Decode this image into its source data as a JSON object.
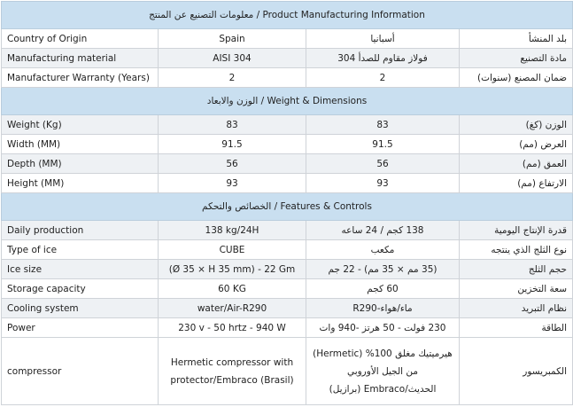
{
  "sections": [
    {
      "title": "معلومات التصنيع عن المنتج / Product Manufacturing Information",
      "rows": [
        {
          "en": "Country of Origin",
          "val_en": "Spain",
          "val_ar": "أسبانيا",
          "ar": "بلد المنشأ"
        },
        {
          "en": "Manufacturing material",
          "val_en": "AISI 304",
          "val_ar": "فولاز مقاوم للصدأ 304",
          "ar": "مادة التصنيع"
        },
        {
          "en": "Manufacturer Warranty (Years)",
          "val_en": "2",
          "val_ar": "2",
          "ar": "ضمان المصنع (سنوات)"
        }
      ]
    },
    {
      "title": "الوزن والابعاد / Weight & Dimensions",
      "rows": [
        {
          "en": "Weight (Kg)",
          "val_en": "83",
          "val_ar": "83",
          "ar": "الوزن (كغ)"
        },
        {
          "en": "Width (MM)",
          "val_en": "91.5",
          "val_ar": "91.5",
          "ar": "العرض (مم)"
        },
        {
          "en": "Depth (MM)",
          "val_en": "56",
          "val_ar": "56",
          "ar": "العمق (مم)"
        },
        {
          "en": "Height (MM)",
          "val_en": "93",
          "val_ar": "93",
          "ar": "الارتفاع (مم)"
        }
      ]
    },
    {
      "title": "الخصائص والتحكم / Features & Controls",
      "rows": [
        {
          "en": "Daily production",
          "val_en": "138 kg/24H",
          "val_ar": "138 كجم / 24 ساعه",
          "ar": "قدرة الإنتاج اليومية"
        },
        {
          "en": "Type of ice",
          "val_en": "CUBE",
          "val_ar": "مكعب",
          "ar": "نوع الثلج الذي ينتجه"
        },
        {
          "en": "Ice size",
          "val_en": "(Ø 35 × H 35 mm) - 22 Gm",
          "val_ar": "(35 مم × 35 مم) - 22 جم",
          "ar": "حجم الثلج"
        },
        {
          "en": "Storage capacity",
          "val_en": "60 KG",
          "val_ar": "60 كجم",
          "ar": "سعة التخزين"
        },
        {
          "en": "Cooling system",
          "val_en": "water/Air-R290",
          "val_ar": "ماء/هواء-R290",
          "ar": "نظام التبريد"
        },
        {
          "en": "Power",
          "val_en": "230 v - 50 hrtz - 940 W",
          "val_ar": "230 فولت - 50 هرتز -940 وات",
          "ar": "الطاقة"
        },
        {
          "en": "compressor",
          "val_en": "Hermetic compressor with protector/Embraco (Brasil)",
          "val_ar": "هيرميتيك مغلق 100% (Hermetic) من الجيل الأوروبي الحديث/Embraco (برازيل)",
          "ar": "الكمبريسور"
        }
      ]
    }
  ]
}
